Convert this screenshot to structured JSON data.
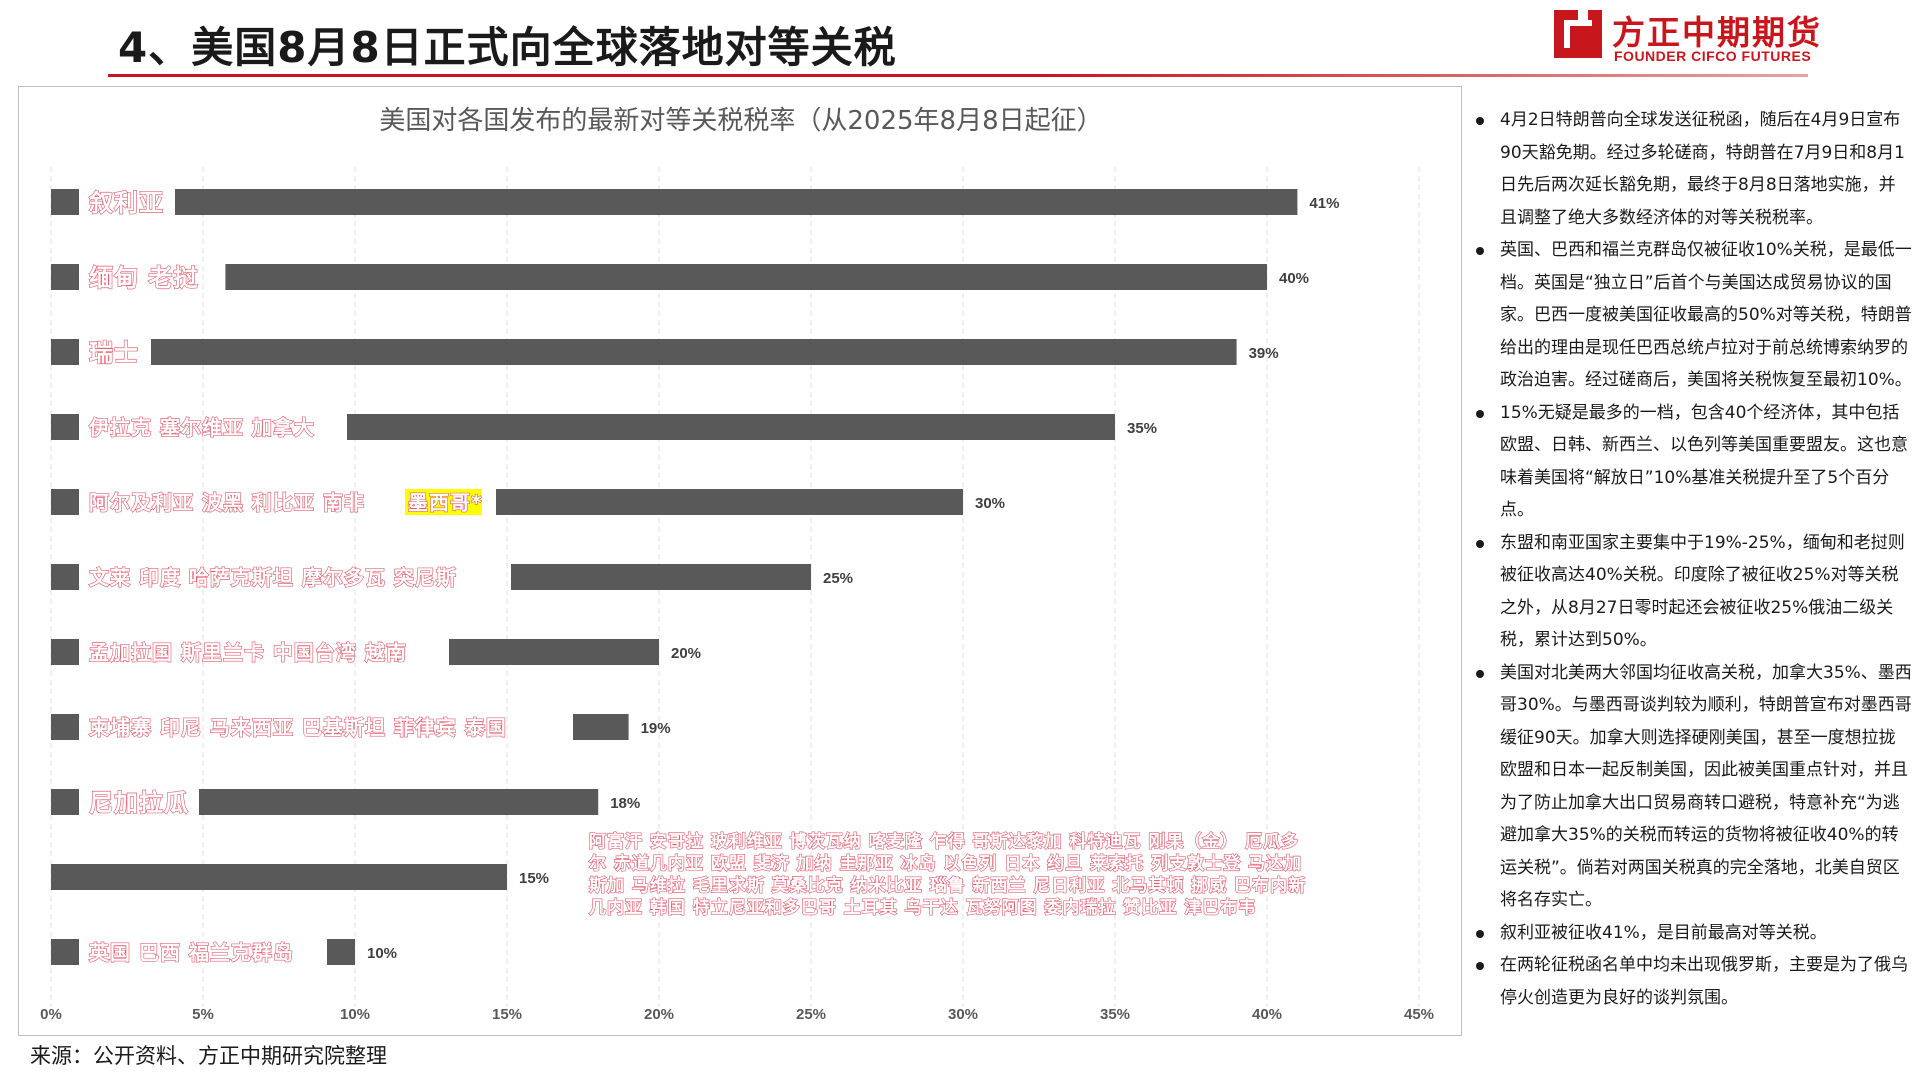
{
  "header": {
    "title": "4、美国8月8日正式向全球落地对等关税"
  },
  "logo": {
    "name_cn": "方正中期期货",
    "name_en": "FOUNDER CIFCO FUTURES",
    "brand_color": "#c8161d"
  },
  "source": "来源：公开资料、方正中期研究院整理",
  "notes": [
    "4月2日特朗普向全球发送征税函，随后在4月9日宣布90天豁免期。经过多轮磋商，特朗普在7月9日和8月1日先后两次延长豁免期，最终于8月8日落地实施，并且调整了绝大多数经济体的对等关税税率。",
    "英国、巴西和福兰克群岛仅被征收10%关税，是最低一档。英国是“独立日”后首个与美国达成贸易协议的国家。巴西一度被美国征收最高的50%对等关税，特朗普给出的理由是现任巴西总统卢拉对于前总统博索纳罗的政治迫害。经过磋商后，美国将关税恢复至最初10%。",
    "15%无疑是最多的一档，包含40个经济体，其中包括欧盟、日韩、新西兰、以色列等美国重要盟友。这也意味着美国将“解放日”10%基准关税提升至了5个百分点。",
    "东盟和南亚国家主要集中于19%-25%，缅甸和老挝则被征收高达40%关税。印度除了被征收25%对等关税之外，从8月27日零时起还会被征收25%俄油二级关税，累计达到50%。",
    "美国对北美两大邻国均征收高关税，加拿大35%、墨西哥30%。与墨西哥谈判较为顺利，特朗普宣布对墨西哥缓征90天。加拿大则选择硬刚美国，甚至一度想拉拢欧盟和日本一起反制美国，因此被美国重点针对，并且为了防止加拿大出口贸易商转口避税，特意补充“为逃避加拿大35%的关税而转运的货物将被征收40%的转运关税”。倘若对两国关税真的完全落地，北美自贸区将名存实亡。",
    "叙利亚被征收41%，是目前最高对等关税。",
    "在两轮征税函名单中均未出现俄罗斯，主要是为了俄乌停火创造更为良好的谈判氛围。"
  ],
  "chart_data": {
    "type": "bar",
    "orientation": "horizontal",
    "title": "美国对各国发布的最新对等关税税率（从2025年8月8日起征）",
    "xlim": [
      0,
      45
    ],
    "xticks": [
      "0%",
      "5%",
      "10%",
      "15%",
      "20%",
      "25%",
      "30%",
      "35%",
      "40%",
      "45%"
    ],
    "bar_color": "#595959",
    "label_color": "#e06070",
    "highlight_color": "#ffff00",
    "bars": [
      {
        "value": 41,
        "value_label": "41%",
        "countries": "叙利亚"
      },
      {
        "value": 40,
        "value_label": "40%",
        "countries": "缅甸  老挝"
      },
      {
        "value": 39,
        "value_label": "39%",
        "countries": "瑞士"
      },
      {
        "value": 35,
        "value_label": "35%",
        "countries": "伊拉克  塞尔维亚  加拿大"
      },
      {
        "value": 30,
        "value_label": "30%",
        "countries": "阿尔及利亚  波黑  利比亚  南非",
        "highlight": "墨西哥*"
      },
      {
        "value": 25,
        "value_label": "25%",
        "countries": "文莱  印度  哈萨克斯坦  摩尔多瓦  突尼斯"
      },
      {
        "value": 20,
        "value_label": "20%",
        "countries": "孟加拉国  斯里兰卡  中国台湾  越南"
      },
      {
        "value": 19,
        "value_label": "19%",
        "countries": "柬埔寨  印尼  马来西亚  巴基斯坦  菲律宾  泰国"
      },
      {
        "value": 18,
        "value_label": "18%",
        "countries": "尼加拉瓜"
      },
      {
        "value": 15,
        "value_label": "15%",
        "countries_lines": [
          "阿富汗  安哥拉  玻利维亚  博茨瓦纳  喀麦隆  乍得  哥斯达黎加  科特迪瓦  刚果（金）  厄瓜多",
          "尔  赤道几内亚  欧盟  斐济  加纳  圭那亚  冰岛  以色列  日本  约旦  莱索托  列支敦士登  马达加",
          "斯加  马维拉  毛里求斯  莫桑比克  纳米比亚  瑙鲁  新西兰  尼日利亚  北马其顿  挪威  巴布内新",
          "几内亚  韩国  特立尼亚和多巴哥  土耳其  乌干达  瓦努阿图  委内瑞拉  赞比亚  津巴布韦"
        ]
      },
      {
        "value": 10,
        "value_label": "10%",
        "countries": "英国  巴西  福兰克群岛"
      }
    ]
  }
}
